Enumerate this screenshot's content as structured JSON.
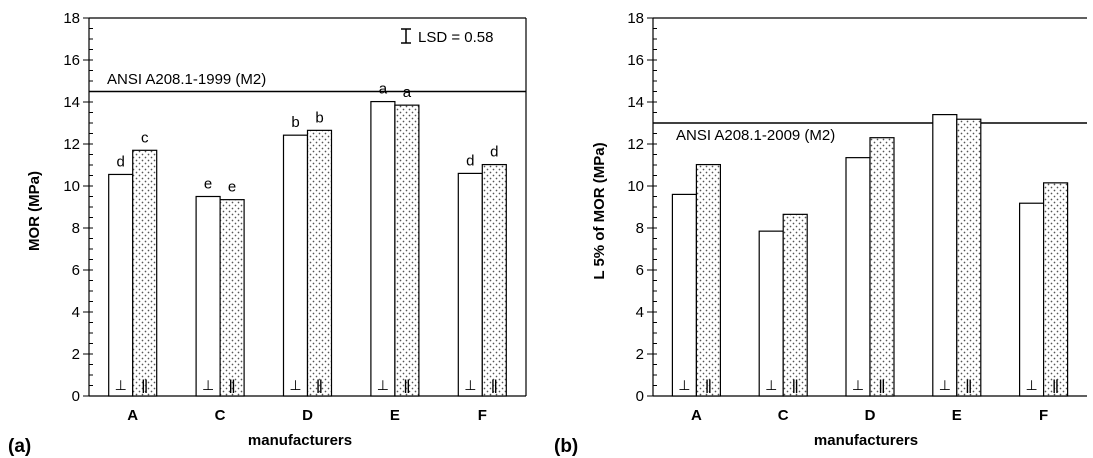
{
  "chart_data": [
    {
      "type": "bar",
      "panel_label": "(a)",
      "categories": [
        "A",
        "C",
        "D",
        "E",
        "F"
      ],
      "series": [
        {
          "symbol": "⊥",
          "pattern": "open",
          "values": [
            10.55,
            9.5,
            12.42,
            14.02,
            10.6
          ],
          "letters": [
            "d",
            "e",
            "b",
            "a",
            "d"
          ]
        },
        {
          "symbol": "ǁ",
          "pattern": "dotted",
          "values": [
            11.7,
            9.35,
            12.65,
            13.85,
            11.02
          ],
          "letters": [
            "c",
            "e",
            "b",
            "a",
            "d"
          ]
        }
      ],
      "xlabel": "manufacturers",
      "ylabel": "MOR (MPa)",
      "ylim": [
        0,
        18
      ],
      "yticks": [
        "0",
        "2",
        "4",
        "6",
        "8",
        "10",
        "12",
        "14",
        "16",
        "18"
      ],
      "reference_line": {
        "value": 14.5,
        "label": "ANSI A208.1-1999 (M2)"
      },
      "lsd_label": "LSD = 0.58",
      "grid": false
    },
    {
      "type": "bar",
      "panel_label": "(b)",
      "categories": [
        "A",
        "C",
        "D",
        "E",
        "F"
      ],
      "series": [
        {
          "symbol": "⊥",
          "pattern": "open",
          "values": [
            9.6,
            7.85,
            11.35,
            13.4,
            9.18
          ]
        },
        {
          "symbol": "ǁ",
          "pattern": "dotted",
          "values": [
            11.02,
            8.65,
            12.3,
            13.18,
            10.15
          ]
        }
      ],
      "xlabel": "manufacturers",
      "ylabel": "L 5% of MOR (MPa)",
      "ylim": [
        0,
        18
      ],
      "yticks": [
        "0",
        "2",
        "4",
        "6",
        "8",
        "10",
        "12",
        "14",
        "16",
        "18"
      ],
      "reference_line": {
        "value": 13.0,
        "label": "ANSI A208.1-2009 (M2)"
      },
      "grid": false
    }
  ]
}
